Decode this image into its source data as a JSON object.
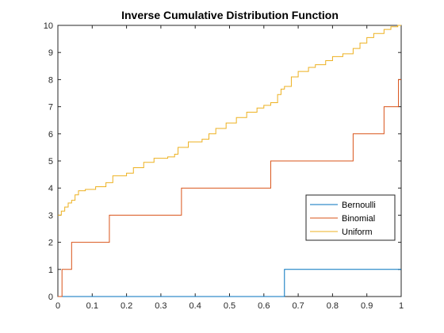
{
  "chart_data": {
    "type": "line",
    "title": "Inverse Cumulative Distribution Function",
    "xlabel": "",
    "ylabel": "",
    "xlim": [
      0,
      1
    ],
    "ylim": [
      0,
      10
    ],
    "x_ticks": [
      "0",
      "0.1",
      "0.2",
      "0.3",
      "0.4",
      "0.5",
      "0.6",
      "0.7",
      "0.8",
      "0.9",
      "1"
    ],
    "y_ticks": [
      "0",
      "1",
      "2",
      "3",
      "4",
      "5",
      "6",
      "7",
      "8",
      "9",
      "10"
    ],
    "grid": false,
    "legend_position": "right",
    "step": true,
    "series": [
      {
        "name": "Bernoulli",
        "color": "#0072BD",
        "points": [
          [
            0,
            0
          ],
          [
            0.66,
            0
          ],
          [
            0.66,
            1
          ],
          [
            1,
            1
          ]
        ]
      },
      {
        "name": "Binomial",
        "color": "#D95319",
        "points": [
          [
            0,
            0
          ],
          [
            0.012,
            0
          ],
          [
            0.012,
            1
          ],
          [
            0.04,
            1
          ],
          [
            0.04,
            2
          ],
          [
            0.15,
            2
          ],
          [
            0.15,
            3
          ],
          [
            0.36,
            3
          ],
          [
            0.36,
            4
          ],
          [
            0.62,
            4
          ],
          [
            0.62,
            5
          ],
          [
            0.86,
            5
          ],
          [
            0.86,
            6
          ],
          [
            0.95,
            6
          ],
          [
            0.95,
            7
          ],
          [
            0.992,
            7
          ],
          [
            0.992,
            8
          ],
          [
            1,
            8
          ]
        ]
      },
      {
        "name": "Uniform",
        "color": "#EDB120",
        "points": [
          [
            0,
            3.0
          ],
          [
            0.01,
            3.15
          ],
          [
            0.02,
            3.3
          ],
          [
            0.03,
            3.45
          ],
          [
            0.04,
            3.55
          ],
          [
            0.05,
            3.75
          ],
          [
            0.06,
            3.9
          ],
          [
            0.08,
            3.95
          ],
          [
            0.1,
            3.95
          ],
          [
            0.11,
            4.05
          ],
          [
            0.14,
            4.2
          ],
          [
            0.16,
            4.45
          ],
          [
            0.2,
            4.55
          ],
          [
            0.22,
            4.75
          ],
          [
            0.25,
            4.95
          ],
          [
            0.28,
            5.1
          ],
          [
            0.32,
            5.15
          ],
          [
            0.34,
            5.25
          ],
          [
            0.35,
            5.5
          ],
          [
            0.38,
            5.7
          ],
          [
            0.42,
            5.8
          ],
          [
            0.44,
            6.0
          ],
          [
            0.46,
            6.2
          ],
          [
            0.49,
            6.4
          ],
          [
            0.52,
            6.6
          ],
          [
            0.55,
            6.8
          ],
          [
            0.58,
            6.95
          ],
          [
            0.6,
            7.05
          ],
          [
            0.62,
            7.15
          ],
          [
            0.64,
            7.45
          ],
          [
            0.65,
            7.65
          ],
          [
            0.66,
            7.75
          ],
          [
            0.68,
            8.1
          ],
          [
            0.7,
            8.3
          ],
          [
            0.73,
            8.45
          ],
          [
            0.75,
            8.55
          ],
          [
            0.78,
            8.7
          ],
          [
            0.8,
            8.85
          ],
          [
            0.83,
            8.95
          ],
          [
            0.86,
            9.15
          ],
          [
            0.88,
            9.35
          ],
          [
            0.9,
            9.55
          ],
          [
            0.92,
            9.7
          ],
          [
            0.95,
            9.85
          ],
          [
            0.97,
            9.95
          ],
          [
            0.99,
            10.0
          ],
          [
            1,
            10.0
          ]
        ]
      }
    ]
  }
}
